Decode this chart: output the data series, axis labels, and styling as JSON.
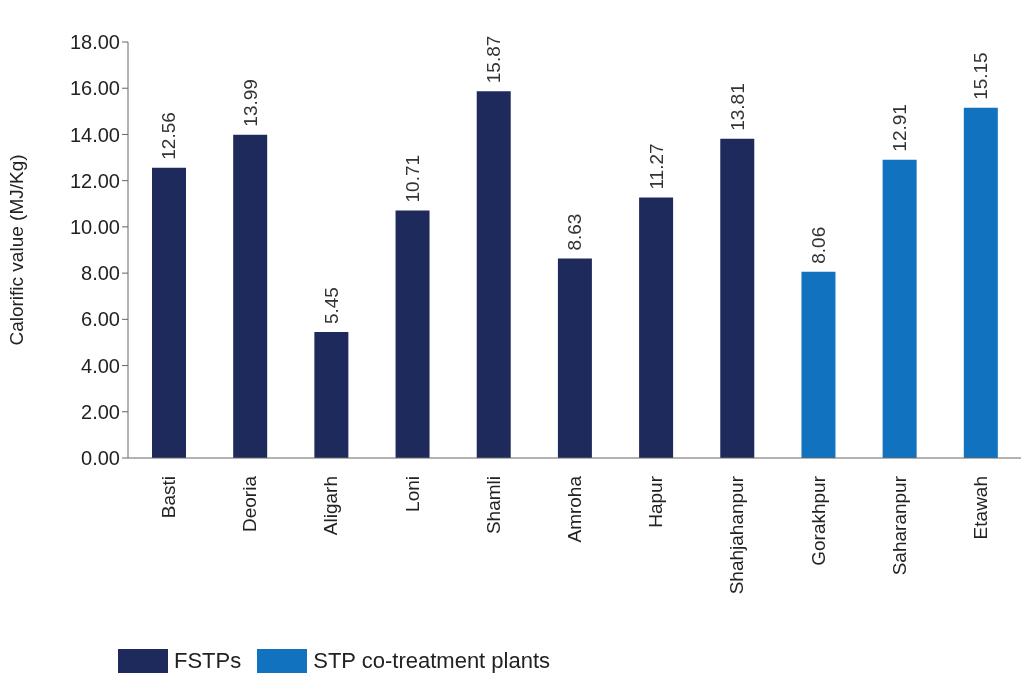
{
  "chart_data": {
    "type": "bar",
    "ylabel": "Calorific value (MJ/Kg)",
    "categories": [
      "Basti",
      "Deoria",
      "Aligarh",
      "Loni",
      "Shamli",
      "Amroha",
      "Hapur",
      "Shahjahanpur",
      "Gorakhpur",
      "Saharanpur",
      "Etawah"
    ],
    "series": [
      {
        "name": "FSTPs",
        "color": "#1f2a5c",
        "values": [
          12.56,
          13.99,
          5.45,
          10.71,
          15.87,
          8.63,
          11.27,
          13.81,
          null,
          null,
          null
        ]
      },
      {
        "name": "STP co-treatment plants",
        "color": "#1172bf",
        "values": [
          null,
          null,
          null,
          null,
          null,
          null,
          null,
          null,
          8.06,
          12.91,
          15.15
        ]
      }
    ],
    "stacked": true,
    "ylim": [
      0,
      18
    ],
    "yticks": [
      {
        "value": 0,
        "label": "0.00"
      },
      {
        "value": 2,
        "label": "2.00"
      },
      {
        "value": 4,
        "label": "4.00"
      },
      {
        "value": 6,
        "label": "6.00"
      },
      {
        "value": 8,
        "label": "8.00"
      },
      {
        "value": 10,
        "label": "10.00"
      },
      {
        "value": 12,
        "label": "12.00"
      },
      {
        "value": 14,
        "label": "14.00"
      },
      {
        "value": 16,
        "label": "16.00"
      },
      {
        "value": 18,
        "label": "18.00"
      }
    ],
    "data_labels": true,
    "grid": false,
    "legend": "bottom left"
  }
}
